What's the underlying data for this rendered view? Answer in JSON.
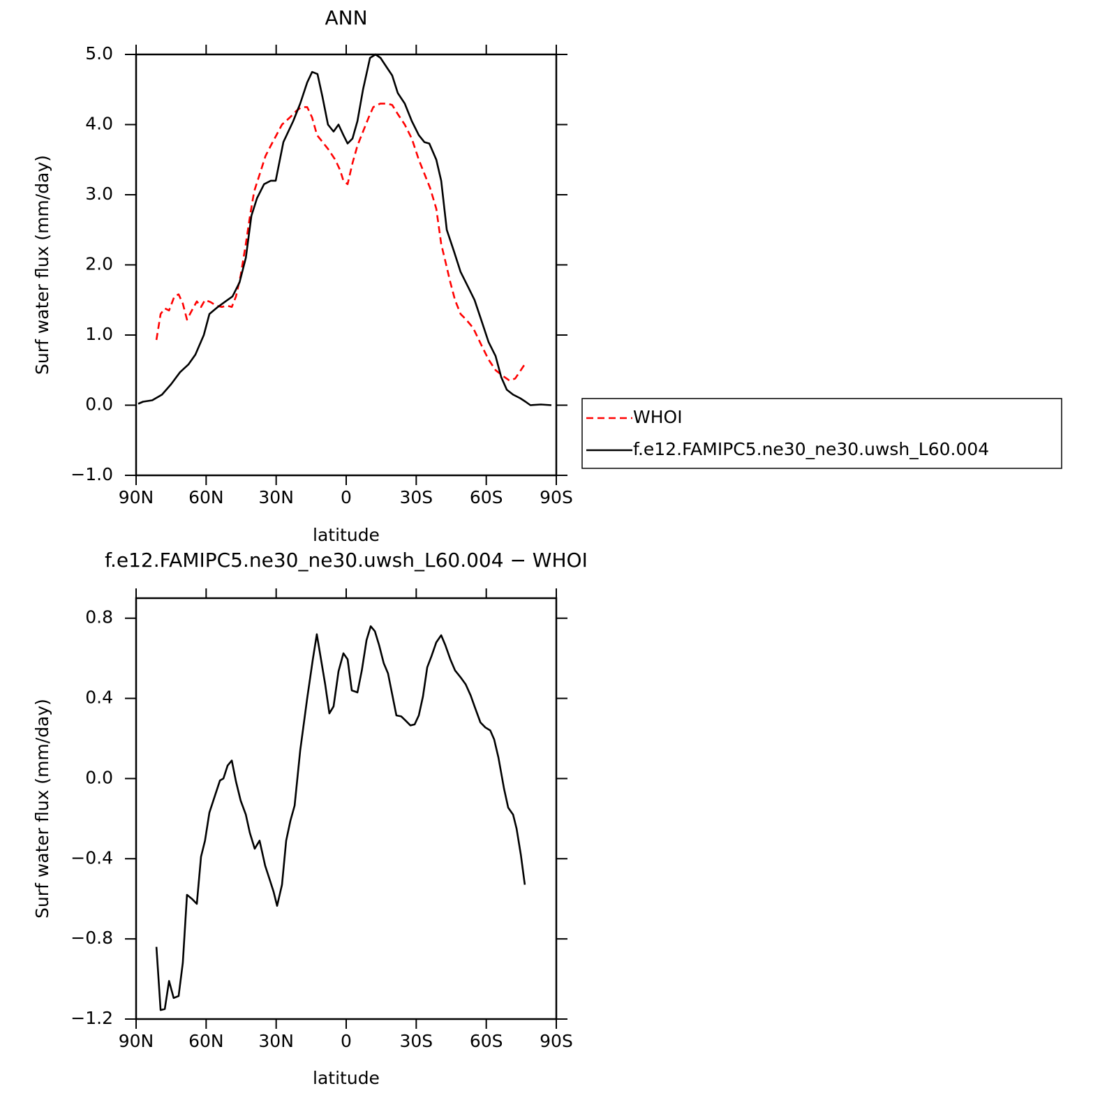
{
  "chart_data": [
    {
      "type": "line",
      "title": "ANN",
      "x_label": "latitude",
      "y_label": "Surf water flux (mm/day)",
      "xlim": [
        90,
        -90
      ],
      "xticks": [
        {
          "value": 90,
          "label": "90N"
        },
        {
          "value": 60,
          "label": "60N"
        },
        {
          "value": 30,
          "label": "30N"
        },
        0,
        {
          "value": -30,
          "label": "30S"
        },
        {
          "value": -60,
          "label": "60S"
        },
        {
          "value": -90,
          "label": "90S"
        }
      ],
      "ylim": [
        -1,
        5
      ],
      "yticks": [
        {
          "value": -1,
          "label": "−1.0"
        },
        {
          "value": 0,
          "label": "0.0"
        },
        {
          "value": 1,
          "label": "1.0"
        },
        {
          "value": 2,
          "label": "2.0"
        },
        {
          "value": 3,
          "label": "3.0"
        },
        {
          "value": 4,
          "label": "4.0"
        },
        {
          "value": 5,
          "label": "5.0"
        }
      ],
      "legend": "right",
      "series": [
        {
          "name": "WHOI",
          "color": "#ff0000",
          "dashed": true,
          "x": [
            81.3,
            79.5,
            77.7,
            75.9,
            73.6,
            71.8,
            70.0,
            68.2,
            66.1,
            64.0,
            62.2,
            60.5,
            58.1,
            55.7,
            53.2,
            51.1,
            49.0,
            47.2,
            45.2,
            43.0,
            41.2,
            39.4,
            37.0,
            34.6,
            32.3,
            29.9,
            27.5,
            24.2,
            21.2,
            19.1,
            16.7,
            14.6,
            12.5,
            10.1,
            7.7,
            4.7,
            2.6,
            1.2,
            -0.6,
            -2.7,
            -4.8,
            -7.2,
            -9.6,
            -11.6,
            -14.6,
            -17.6,
            -19.7,
            -22.1,
            -25.1,
            -28.1,
            -31.1,
            -33.5,
            -35.9,
            -38.6,
            -40.7,
            -42.5,
            -44.6,
            -46.6,
            -49.0,
            -51.4,
            -54.4,
            -58.0,
            -61.0,
            -64.0,
            -67.0,
            -70.0,
            -72.4,
            -74.8,
            -76.8
          ],
          "values": [
            0.93,
            1.3,
            1.38,
            1.35,
            1.55,
            1.58,
            1.45,
            1.22,
            1.35,
            1.48,
            1.4,
            1.5,
            1.47,
            1.42,
            1.4,
            1.42,
            1.4,
            1.55,
            1.85,
            2.3,
            2.7,
            3.05,
            3.3,
            3.55,
            3.7,
            3.85,
            4.0,
            4.1,
            4.2,
            4.25,
            4.25,
            4.1,
            3.85,
            3.75,
            3.65,
            3.5,
            3.35,
            3.2,
            3.15,
            3.45,
            3.7,
            3.9,
            4.1,
            4.25,
            4.3,
            4.3,
            4.28,
            4.15,
            4.0,
            3.8,
            3.5,
            3.3,
            3.1,
            2.8,
            2.3,
            2.05,
            1.75,
            1.5,
            1.3,
            1.22,
            1.1,
            0.85,
            0.65,
            0.5,
            0.42,
            0.35,
            0.38,
            0.5,
            0.6
          ]
        },
        {
          "name": "f.e12.FAMIPC5.ne30_ne30.uwsh_L60.004",
          "color": "#000000",
          "x": [
            89.1,
            87.0,
            83.1,
            78.9,
            75.0,
            71.2,
            67.6,
            64.6,
            61.0,
            58.6,
            55.0,
            51.7,
            48.7,
            45.7,
            43.0,
            40.6,
            38.2,
            35.2,
            32.3,
            30.2,
            26.9,
            22.7,
            19.7,
            16.7,
            14.6,
            12.3,
            10.2,
            7.8,
            5.4,
            3.3,
            1.2,
            -0.6,
            -2.7,
            -4.8,
            -7.2,
            -10.2,
            -12.6,
            -14.7,
            -17.7,
            -19.7,
            -22.1,
            -25.1,
            -28.1,
            -31.1,
            -33.5,
            -35.6,
            -38.6,
            -40.7,
            -43.1,
            -46.1,
            -49.0,
            -52.0,
            -55.0,
            -58.0,
            -61.0,
            -64.0,
            -66.4,
            -68.8,
            -71.5,
            -74.5,
            -76.8,
            -78.9,
            -83.4,
            -87.9
          ],
          "values": [
            0.02,
            0.05,
            0.07,
            0.15,
            0.3,
            0.47,
            0.58,
            0.72,
            1.0,
            1.3,
            1.4,
            1.48,
            1.55,
            1.75,
            2.1,
            2.7,
            2.95,
            3.15,
            3.2,
            3.2,
            3.75,
            4.05,
            4.3,
            4.6,
            4.75,
            4.72,
            4.4,
            4.0,
            3.9,
            4.0,
            3.85,
            3.73,
            3.8,
            4.05,
            4.5,
            4.95,
            5.0,
            4.95,
            4.8,
            4.7,
            4.45,
            4.3,
            4.05,
            3.85,
            3.75,
            3.73,
            3.5,
            3.2,
            2.5,
            2.2,
            1.9,
            1.7,
            1.5,
            1.2,
            0.9,
            0.7,
            0.4,
            0.22,
            0.15,
            0.1,
            0.05,
            0.0,
            0.01,
            0.0
          ]
        }
      ]
    },
    {
      "type": "line",
      "title": "f.e12.FAMIPC5.ne30_ne30.uwsh_L60.004 − WHOI",
      "x_label": "latitude",
      "y_label": "Surf water flux (mm/day)",
      "xlim": [
        90,
        -90
      ],
      "xticks": [
        {
          "value": 90,
          "label": "90N"
        },
        {
          "value": 60,
          "label": "60N"
        },
        {
          "value": 30,
          "label": "30N"
        },
        0,
        {
          "value": -30,
          "label": "30S"
        },
        {
          "value": -60,
          "label": "60S"
        },
        {
          "value": -90,
          "label": "90S"
        }
      ],
      "ylim": [
        -1.2,
        0.9
      ],
      "yticks": [
        {
          "value": -1.2,
          "label": "−1.2"
        },
        {
          "value": -0.8,
          "label": "−0.8"
        },
        {
          "value": -0.4,
          "label": "−0.4"
        },
        {
          "value": 0,
          "label": "0.0"
        },
        0.4,
        0.8
      ],
      "series": [
        {
          "color": "#000000",
          "x": [
            81.3,
            79.5,
            77.7,
            75.9,
            73.9,
            71.8,
            70.0,
            68.2,
            66.1,
            64.0,
            62.2,
            60.5,
            58.6,
            56.2,
            54.1,
            52.6,
            50.8,
            49.0,
            47.2,
            45.2,
            43.0,
            41.3,
            39.2,
            37.1,
            34.7,
            32.9,
            31.1,
            29.6,
            27.5,
            25.7,
            23.9,
            22.1,
            19.7,
            16.7,
            14.3,
            12.6,
            10.8,
            9.0,
            7.2,
            5.4,
            3.3,
            1.2,
            -0.6,
            -2.4,
            -4.8,
            -6.7,
            -8.7,
            -10.5,
            -12.3,
            -14.1,
            -16.1,
            -17.9,
            -19.7,
            -21.5,
            -23.6,
            -25.4,
            -27.5,
            -29.3,
            -31.1,
            -32.9,
            -34.7,
            -36.5,
            -38.6,
            -40.7,
            -42.5,
            -44.6,
            -46.6,
            -49.0,
            -51.2,
            -53.3,
            -55.0,
            -57.5,
            -59.6,
            -61.7,
            -63.4,
            -65.2,
            -67.6,
            -69.4,
            -71.5,
            -73.0,
            -74.8,
            -76.5
          ],
          "values": [
            -0.84,
            -1.155,
            -1.15,
            -1.01,
            -1.095,
            -1.085,
            -0.92,
            -0.58,
            -0.6,
            -0.625,
            -0.39,
            -0.31,
            -0.17,
            -0.085,
            -0.01,
            0.0,
            0.065,
            0.09,
            -0.015,
            -0.11,
            -0.18,
            -0.27,
            -0.35,
            -0.31,
            -0.435,
            -0.5,
            -0.565,
            -0.635,
            -0.53,
            -0.31,
            -0.21,
            -0.135,
            0.14,
            0.4,
            0.595,
            0.72,
            0.595,
            0.47,
            0.325,
            0.36,
            0.535,
            0.625,
            0.595,
            0.44,
            0.43,
            0.54,
            0.69,
            0.76,
            0.735,
            0.665,
            0.575,
            0.525,
            0.42,
            0.315,
            0.31,
            0.29,
            0.265,
            0.27,
            0.315,
            0.41,
            0.555,
            0.61,
            0.68,
            0.715,
            0.665,
            0.595,
            0.54,
            0.505,
            0.47,
            0.415,
            0.36,
            0.28,
            0.255,
            0.24,
            0.195,
            0.105,
            -0.05,
            -0.145,
            -0.18,
            -0.25,
            -0.38,
            -0.53
          ]
        }
      ]
    }
  ]
}
